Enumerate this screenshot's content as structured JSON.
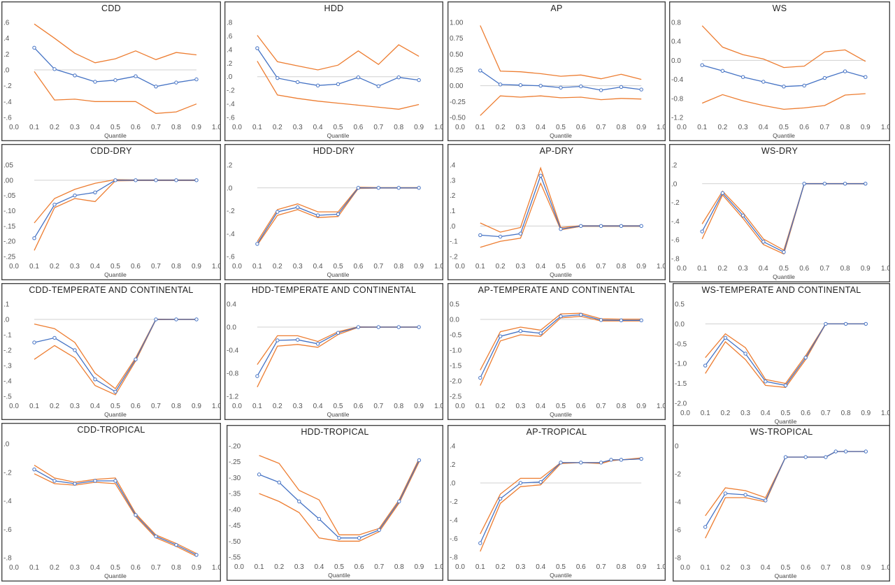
{
  "chart_data": [
    {
      "title": "CDD",
      "type": "line",
      "xlabel": "Quantile",
      "xticks": [
        "0.0",
        "0.1",
        "0.2",
        "0.3",
        "0.4",
        "0.5",
        "0.6",
        "0.7",
        "0.8",
        "0.9",
        "1.0"
      ],
      "ylim": [
        -0.6,
        0.6
      ],
      "yticks": [
        ".6",
        ".4",
        ".2",
        ".0",
        "-.2",
        "-.4",
        "-.6"
      ],
      "baseline": 0,
      "x": [
        0.1,
        0.2,
        0.3,
        0.4,
        0.5,
        0.6,
        0.7,
        0.8,
        0.9
      ],
      "upper": [
        0.58,
        0.4,
        0.21,
        0.09,
        0.14,
        0.24,
        0.13,
        0.22,
        0.19
      ],
      "estimate": [
        0.28,
        0.01,
        -0.07,
        -0.15,
        -0.13,
        -0.08,
        -0.21,
        -0.16,
        -0.12
      ],
      "lower": [
        -0.02,
        -0.38,
        -0.37,
        -0.4,
        -0.4,
        -0.4,
        -0.55,
        -0.53,
        -0.43
      ]
    },
    {
      "title": "HDD",
      "type": "line",
      "xlabel": "Quantile",
      "xticks": [
        "0.0",
        "0.1",
        "0.2",
        "0.3",
        "0.4",
        "0.5",
        "0.6",
        "0.7",
        "0.8",
        "0.9",
        "1.0"
      ],
      "ylim": [
        -0.6,
        0.8
      ],
      "yticks": [
        ".8",
        ".6",
        ".4",
        ".2",
        ".0",
        "-.2",
        "-.4",
        "-.6"
      ],
      "baseline": 0,
      "x": [
        0.1,
        0.2,
        0.3,
        0.4,
        0.5,
        0.6,
        0.7,
        0.8,
        0.9
      ],
      "upper": [
        0.61,
        0.22,
        0.16,
        0.1,
        0.17,
        0.38,
        0.18,
        0.47,
        0.3
      ],
      "estimate": [
        0.42,
        -0.02,
        -0.08,
        -0.13,
        -0.11,
        -0.01,
        -0.14,
        -0.01,
        -0.05
      ],
      "lower": [
        0.23,
        -0.27,
        -0.32,
        -0.36,
        -0.39,
        -0.42,
        -0.45,
        -0.48,
        -0.41
      ]
    },
    {
      "title": "AP",
      "type": "line",
      "xlabel": "Quantile",
      "xticks": [
        "0.0",
        "0.1",
        "0.2",
        "0.3",
        "0.4",
        "0.5",
        "0.6",
        "0.7",
        "0.8",
        "0.9",
        "1.0"
      ],
      "ylim": [
        -0.5,
        1.0
      ],
      "yticks": [
        "1.00",
        "0.75",
        "0.50",
        "0.25",
        "0.00",
        "-0.25",
        "-0.50"
      ],
      "baseline": 0,
      "x": [
        0.1,
        0.2,
        0.3,
        0.4,
        0.5,
        0.6,
        0.7,
        0.8,
        0.9
      ],
      "upper": [
        0.95,
        0.23,
        0.22,
        0.19,
        0.15,
        0.17,
        0.11,
        0.18,
        0.1
      ],
      "estimate": [
        0.24,
        0.02,
        0.01,
        0.0,
        -0.03,
        -0.01,
        -0.07,
        -0.02,
        -0.06
      ],
      "lower": [
        -0.47,
        -0.16,
        -0.18,
        -0.16,
        -0.19,
        -0.18,
        -0.22,
        -0.2,
        -0.21
      ]
    },
    {
      "title": "WS",
      "type": "line",
      "xlabel": "Quantile",
      "xticks": [
        "0.0",
        "0.1",
        "0.2",
        "0.3",
        "0.4",
        "0.5",
        "0.6",
        "0.7",
        "0.8",
        "0.9",
        "1.0"
      ],
      "ylim": [
        -1.2,
        0.8
      ],
      "yticks": [
        "0.8",
        "0.4",
        "0.0",
        "-0.4",
        "-0.8",
        "-1.2"
      ],
      "baseline": 0,
      "x": [
        0.1,
        0.2,
        0.3,
        0.4,
        0.5,
        0.6,
        0.7,
        0.8,
        0.9
      ],
      "upper": [
        0.73,
        0.28,
        0.12,
        0.03,
        -0.15,
        -0.12,
        0.18,
        0.22,
        -0.02
      ],
      "estimate": [
        -0.1,
        -0.22,
        -0.35,
        -0.45,
        -0.55,
        -0.53,
        -0.37,
        -0.23,
        -0.35
      ],
      "lower": [
        -0.9,
        -0.72,
        -0.85,
        -0.95,
        -1.03,
        -1.0,
        -0.95,
        -0.73,
        -0.7
      ]
    },
    {
      "title": "CDD-DRY",
      "type": "line",
      "xlabel": "Quantile",
      "xticks": [
        "0.0",
        "0.1",
        "0.2",
        "0.3",
        "0.4",
        "0.5",
        "0.6",
        "0.7",
        "0.8",
        "0.9",
        "1.0"
      ],
      "ylim": [
        -0.25,
        0.05
      ],
      "yticks": [
        ".05",
        ".00",
        "-.05",
        "-.10",
        "-.15",
        "-.20",
        "-.25"
      ],
      "baseline": 0,
      "x": [
        0.1,
        0.2,
        0.3,
        0.4,
        0.5,
        0.6,
        0.7,
        0.8,
        0.9
      ],
      "upper": [
        -0.14,
        -0.06,
        -0.03,
        -0.01,
        0.002,
        0.001,
        0.001,
        0.001,
        0.001
      ],
      "estimate": [
        -0.19,
        -0.08,
        -0.05,
        -0.04,
        0.0,
        0.0,
        0.0,
        0.0,
        0.0
      ],
      "lower": [
        -0.23,
        -0.09,
        -0.06,
        -0.07,
        -0.002,
        -0.001,
        -0.001,
        -0.001,
        -0.001
      ]
    },
    {
      "title": "HDD-DRY",
      "type": "line",
      "xlabel": "Quantile",
      "xticks": [
        "0.0",
        "0.1",
        "0.2",
        "0.3",
        "0.4",
        "0.5",
        "0.6",
        "0.7",
        "0.8",
        "0.9",
        "1.0"
      ],
      "ylim": [
        -0.6,
        0.2
      ],
      "yticks": [
        ".2",
        ".0",
        "-.2",
        "-.4",
        "-.6"
      ],
      "baseline": 0,
      "x": [
        0.1,
        0.2,
        0.3,
        0.4,
        0.5,
        0.6,
        0.7,
        0.8,
        0.9
      ],
      "upper": [
        -0.47,
        -0.19,
        -0.14,
        -0.21,
        -0.21,
        0.005,
        0.002,
        0.002,
        0.002
      ],
      "estimate": [
        -0.49,
        -0.21,
        -0.17,
        -0.24,
        -0.23,
        0.0,
        0.0,
        0.0,
        0.0
      ],
      "lower": [
        -0.5,
        -0.24,
        -0.19,
        -0.26,
        -0.25,
        -0.005,
        -0.002,
        -0.002,
        -0.002
      ]
    },
    {
      "title": "AP-DRY",
      "type": "line",
      "xlabel": "Quantile",
      "xticks": [
        "0.0",
        "0.1",
        "0.2",
        "0.3",
        "0.4",
        "0.5",
        "0.6",
        "0.7",
        "0.8",
        "0.9",
        "1.0"
      ],
      "ylim": [
        -0.2,
        0.4
      ],
      "yticks": [
        ".4",
        ".3",
        ".2",
        ".1",
        ".0",
        "-.1",
        "-.2"
      ],
      "baseline": 0,
      "x": [
        0.1,
        0.2,
        0.3,
        0.4,
        0.5,
        0.6,
        0.7,
        0.8,
        0.9
      ],
      "upper": [
        0.02,
        -0.04,
        -0.01,
        0.38,
        -0.01,
        0.002,
        0.002,
        0.002,
        0.002
      ],
      "estimate": [
        -0.06,
        -0.07,
        -0.05,
        0.33,
        -0.02,
        0.0,
        0.0,
        0.0,
        0.0
      ],
      "lower": [
        -0.14,
        -0.1,
        -0.08,
        0.28,
        -0.025,
        -0.002,
        -0.002,
        -0.002,
        -0.002
      ]
    },
    {
      "title": "WS-DRY",
      "type": "line",
      "xlabel": "Quantile",
      "xticks": [
        "0.0",
        "0.1",
        "0.2",
        "0.3",
        "0.4",
        "0.5",
        "0.6",
        "0.7",
        "0.8",
        "0.9",
        "1.0"
      ],
      "ylim": [
        -0.8,
        0.2
      ],
      "yticks": [
        ".2",
        ".0",
        "-.2",
        "-.4",
        "-.6",
        "-.8"
      ],
      "baseline": 0,
      "x": [
        0.1,
        0.2,
        0.3,
        0.4,
        0.5,
        0.6,
        0.7,
        0.8,
        0.9
      ],
      "upper": [
        -0.43,
        -0.08,
        -0.31,
        -0.59,
        -0.71,
        0.002,
        0.002,
        0.002,
        0.002
      ],
      "estimate": [
        -0.51,
        -0.1,
        -0.34,
        -0.62,
        -0.73,
        0.0,
        0.0,
        0.0,
        0.0
      ],
      "lower": [
        -0.59,
        -0.12,
        -0.37,
        -0.65,
        -0.75,
        -0.002,
        -0.002,
        -0.002,
        -0.002
      ]
    },
    {
      "title": "CDD-TEMPERATE AND CONTINENTAL",
      "type": "line",
      "xlabel": "Quantile",
      "xticks": [
        "0.0",
        "0.1",
        "0.2",
        "0.3",
        "0.4",
        "0.5",
        "0.6",
        "0.7",
        "0.8",
        "0.9",
        "1.0"
      ],
      "ylim": [
        -0.5,
        0.1
      ],
      "yticks": [
        ".1",
        ".0",
        "-.1",
        "-.2",
        "-.3",
        "-.4",
        "-.5"
      ],
      "baseline": 0,
      "x": [
        0.1,
        0.2,
        0.3,
        0.4,
        0.5,
        0.6,
        0.7,
        0.8,
        0.9
      ],
      "upper": [
        -0.03,
        -0.06,
        -0.15,
        -0.35,
        -0.45,
        -0.25,
        0.002,
        0.001,
        0.001
      ],
      "estimate": [
        -0.15,
        -0.12,
        -0.2,
        -0.39,
        -0.47,
        -0.26,
        0.0,
        0.0,
        0.0
      ],
      "lower": [
        -0.26,
        -0.17,
        -0.25,
        -0.43,
        -0.49,
        -0.27,
        -0.002,
        -0.001,
        -0.001
      ]
    },
    {
      "title": "HDD-TEMPERATE AND CONTINENTAL",
      "type": "line",
      "xlabel": "Quantile",
      "xticks": [
        "0.0",
        "0.1",
        "0.2",
        "0.3",
        "0.4",
        "0.5",
        "0.6",
        "0.7",
        "0.8",
        "0.9",
        "1.0"
      ],
      "ylim": [
        -1.2,
        0.4
      ],
      "yticks": [
        "0.4",
        "0.0",
        "-0.4",
        "-0.8",
        "-1.2"
      ],
      "baseline": 0,
      "x": [
        0.1,
        0.2,
        0.3,
        0.4,
        0.5,
        0.6,
        0.7,
        0.8,
        0.9
      ],
      "upper": [
        -0.65,
        -0.15,
        -0.15,
        -0.25,
        -0.08,
        0.005,
        0.003,
        0.003,
        0.003
      ],
      "estimate": [
        -0.85,
        -0.23,
        -0.22,
        -0.29,
        -0.1,
        0.0,
        0.0,
        0.0,
        0.0
      ],
      "lower": [
        -1.04,
        -0.33,
        -0.3,
        -0.35,
        -0.13,
        -0.005,
        -0.003,
        -0.003,
        -0.003
      ]
    },
    {
      "title": "AP-TEMPERATE AND CONTINENTAL",
      "type": "line",
      "xlabel": "Quantile",
      "xticks": [
        "0.0",
        "0.1",
        "0.2",
        "0.3",
        "0.4",
        "0.5",
        "0.6",
        "0.7",
        "0.8",
        "0.9",
        "1.0"
      ],
      "ylim": [
        -2.5,
        0.5
      ],
      "yticks": [
        "0.5",
        "0.0",
        "-0.5",
        "-1.0",
        "-1.5",
        "-2.0",
        "-2.5"
      ],
      "baseline": 0,
      "x": [
        0.1,
        0.2,
        0.3,
        0.4,
        0.5,
        0.6,
        0.7,
        0.8,
        0.9
      ],
      "upper": [
        -1.65,
        -0.4,
        -0.25,
        -0.35,
        0.18,
        0.2,
        0.02,
        0.01,
        0.01
      ],
      "estimate": [
        -1.9,
        -0.55,
        -0.38,
        -0.45,
        0.1,
        0.15,
        -0.02,
        -0.03,
        -0.03
      ],
      "lower": [
        -2.15,
        -0.7,
        -0.5,
        -0.55,
        0.05,
        0.1,
        -0.05,
        -0.05,
        -0.05
      ]
    },
    {
      "title": "WS-TEMPERATE AND CONTINENTAL",
      "type": "line",
      "xlabel": "Quantile",
      "xticks": [
        "0.0",
        "0.1",
        "0.2",
        "0.3",
        "0.4",
        "0.5",
        "0.6",
        "0.7",
        "0.8",
        "0.9",
        "1.0"
      ],
      "ylim": [
        -2.0,
        0.5
      ],
      "yticks": [
        "0.5",
        "0.0",
        "-0.5",
        "-1.0",
        "-1.5",
        "-2.0"
      ],
      "baseline": 0,
      "x": [
        0.1,
        0.2,
        0.3,
        0.4,
        0.5,
        0.6,
        0.7,
        0.8,
        0.9
      ],
      "upper": [
        -0.85,
        -0.25,
        -0.6,
        -1.4,
        -1.5,
        -0.8,
        0.002,
        0.002,
        0.002
      ],
      "estimate": [
        -1.05,
        -0.35,
        -0.75,
        -1.45,
        -1.55,
        -0.85,
        0.0,
        0.0,
        0.0
      ],
      "lower": [
        -1.25,
        -0.45,
        -0.9,
        -1.55,
        -1.6,
        -0.9,
        -0.002,
        -0.002,
        -0.002
      ]
    },
    {
      "title": "CDD-TROPICAL",
      "type": "line",
      "xlabel": "Quantile",
      "xticks": [
        "0.0",
        "0.1",
        "0.2",
        "0.3",
        "0.4",
        "0.5",
        "0.6",
        "0.7",
        "0.8",
        "0.9",
        "1.0"
      ],
      "ylim": [
        -0.8,
        0.0
      ],
      "yticks": [
        ".0",
        "-.2",
        "-.4",
        "-.6",
        "-.8"
      ],
      "baseline": null,
      "x": [
        0.1,
        0.2,
        0.3,
        0.4,
        0.5,
        0.6,
        0.7,
        0.8,
        0.9
      ],
      "upper": [
        -0.15,
        -0.24,
        -0.27,
        -0.25,
        -0.24,
        -0.49,
        -0.64,
        -0.7,
        -0.77
      ],
      "estimate": [
        -0.18,
        -0.26,
        -0.28,
        -0.26,
        -0.26,
        -0.5,
        -0.65,
        -0.71,
        -0.78
      ],
      "lower": [
        -0.21,
        -0.28,
        -0.29,
        -0.27,
        -0.28,
        -0.51,
        -0.66,
        -0.72,
        -0.79
      ]
    },
    {
      "title": "HDD-TROPICAL",
      "type": "line",
      "xlabel": "Quantile",
      "xticks": [
        "0.0",
        "0.1",
        "0.2",
        "0.3",
        "0.4",
        "0.5",
        "0.6",
        "0.7",
        "0.8",
        "0.9",
        "1.0"
      ],
      "ylim": [
        -0.55,
        -0.2
      ],
      "yticks": [
        "-.20",
        "-.25",
        "-.30",
        "-.35",
        "-.40",
        "-.45",
        "-.50",
        "-.55"
      ],
      "baseline": null,
      "x": [
        0.1,
        0.2,
        0.3,
        0.4,
        0.5,
        0.6,
        0.7,
        0.8,
        0.9
      ],
      "upper": [
        -0.23,
        -0.255,
        -0.34,
        -0.37,
        -0.48,
        -0.48,
        -0.46,
        -0.37,
        -0.24
      ],
      "estimate": [
        -0.29,
        -0.315,
        -0.375,
        -0.43,
        -0.49,
        -0.49,
        -0.465,
        -0.375,
        -0.245
      ],
      "lower": [
        -0.35,
        -0.375,
        -0.41,
        -0.49,
        -0.5,
        -0.5,
        -0.47,
        -0.38,
        -0.25
      ]
    },
    {
      "title": "AP-TROPICAL",
      "type": "line",
      "xlabel": "Quantile",
      "xticks": [
        "0.0",
        "0.1",
        "0.2",
        "0.3",
        "0.4",
        "0.5",
        "0.6",
        "0.7",
        "0.8",
        "0.9",
        "1.0"
      ],
      "ylim": [
        -0.8,
        0.4
      ],
      "yticks": [
        ".4",
        ".2",
        ".0",
        "-.2",
        "-.4",
        "-.6",
        "-.8"
      ],
      "baseline": 0,
      "x": [
        0.1,
        0.2,
        0.3,
        0.4,
        0.5,
        0.6,
        0.7,
        0.75,
        0.8,
        0.9
      ],
      "upper": [
        -0.55,
        -0.12,
        0.05,
        0.05,
        0.22,
        0.22,
        0.22,
        0.25,
        0.25,
        0.27
      ],
      "estimate": [
        -0.65,
        -0.17,
        0.0,
        0.01,
        0.22,
        0.22,
        0.22,
        0.25,
        0.25,
        0.26
      ],
      "lower": [
        -0.74,
        -0.22,
        -0.04,
        -0.02,
        0.21,
        0.22,
        0.21,
        0.24,
        0.25,
        0.26
      ]
    },
    {
      "title": "WS-TROPICAL",
      "type": "line",
      "xlabel": "Quantile",
      "xticks": [
        "0.0",
        "0.1",
        "0.2",
        "0.3",
        "0.4",
        "0.5",
        "0.6",
        "0.7",
        "0.8",
        "0.9",
        "1.0"
      ],
      "ylim": [
        -8,
        0
      ],
      "yticks": [
        "0",
        "-2",
        "-4",
        "-6",
        "-8"
      ],
      "baseline": null,
      "x": [
        0.1,
        0.2,
        0.3,
        0.4,
        0.5,
        0.6,
        0.7,
        0.75,
        0.8,
        0.9
      ],
      "upper": [
        -5.0,
        -3.0,
        -3.2,
        -3.7,
        -0.8,
        -0.8,
        -0.8,
        -0.4,
        -0.4,
        -0.4
      ],
      "estimate": [
        -5.8,
        -3.4,
        -3.5,
        -3.9,
        -0.8,
        -0.8,
        -0.8,
        -0.4,
        -0.4,
        -0.4
      ],
      "lower": [
        -6.6,
        -3.7,
        -3.7,
        -4.0,
        -0.8,
        -0.8,
        -0.8,
        -0.4,
        -0.4,
        -0.4
      ]
    }
  ],
  "colors": {
    "ci": "#ed7d31",
    "estimate": "#4472c4",
    "baseline": "#d0d0d0"
  }
}
